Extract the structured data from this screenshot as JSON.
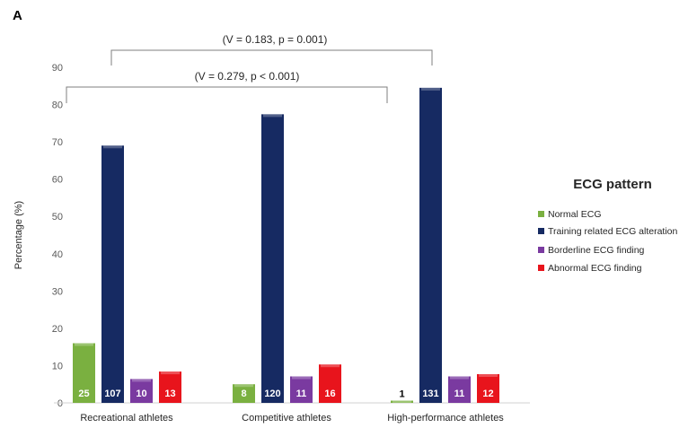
{
  "panel_label": "A",
  "chart_data": {
    "type": "bar",
    "ylabel": "Percentage (%)",
    "xlabel": "",
    "ylim": [
      0,
      90
    ],
    "yticks": [
      0,
      10,
      20,
      30,
      40,
      50,
      60,
      70,
      80,
      90
    ],
    "grid": false,
    "categories": [
      "Recreational athletes",
      "Competitive athletes",
      "High-performance athletes"
    ],
    "legend_title": "ECG pattern",
    "legend_position": "right",
    "series": [
      {
        "name": "Normal ECG",
        "color": "#7ab040",
        "values": [
          16.0,
          5.0,
          0.6
        ],
        "counts": [
          "25",
          "8",
          "1"
        ]
      },
      {
        "name": "Training related ECG alteration",
        "color": "#162a62",
        "values": [
          69.0,
          77.4,
          84.5
        ],
        "counts": [
          "107",
          "120",
          "131"
        ]
      },
      {
        "name": "Borderline ECG finding",
        "color": "#7a3aa0",
        "values": [
          6.4,
          7.1,
          7.1
        ],
        "counts": [
          "10",
          "11",
          "11"
        ]
      },
      {
        "name": "Abnormal ECG finding",
        "color": "#e8141c",
        "values": [
          8.4,
          10.3,
          7.7
        ],
        "counts": [
          "13",
          "16",
          "12"
        ]
      }
    ],
    "annotations": [
      {
        "text": "(V = 0.183, p = 0.001)",
        "from_category": 0,
        "to_category": 2
      },
      {
        "text": "(V = 0.279, p < 0.001)",
        "from_category": 0,
        "to_category": 2
      }
    ]
  }
}
